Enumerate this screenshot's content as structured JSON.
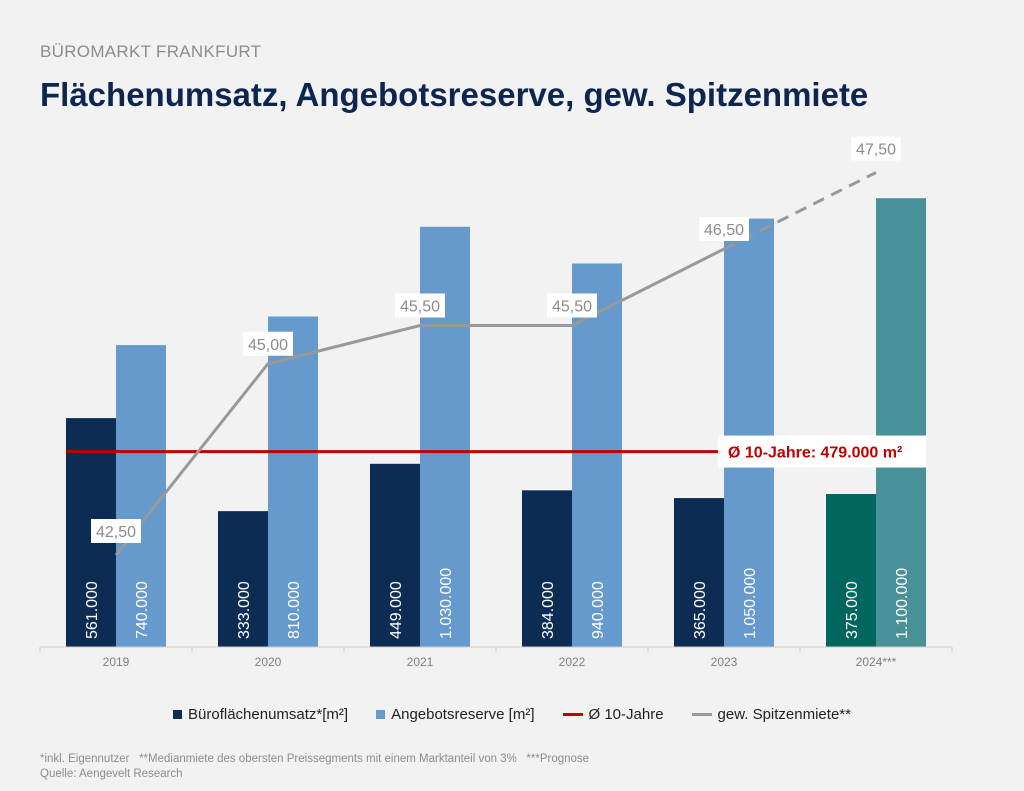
{
  "header": {
    "supertitle": "BÜROMARKT FRANKFURT",
    "title": "Flächenumsatz, Angebotsreserve, gew. Spitzenmiete"
  },
  "chart_data": {
    "type": "bar",
    "categories": [
      "2019",
      "2020",
      "2021",
      "2022",
      "2023",
      "2024***"
    ],
    "ylim": [
      0,
      1200000
    ],
    "grid": false,
    "legend_position": "bottom",
    "series": [
      {
        "name": "Büroflächenumsatz*[m²]",
        "values": [
          561000,
          333000,
          449000,
          384000,
          365000,
          375000
        ],
        "labels": [
          "561.000",
          "333.000",
          "449.000",
          "384.000",
          "365.000",
          "375.000"
        ],
        "color": "#0d2c54",
        "forecast_color": "#00665e"
      },
      {
        "name": "Angebotsreserve [m²]",
        "values": [
          740000,
          810000,
          1030000,
          940000,
          1050000,
          1100000
        ],
        "labels": [
          "740.000",
          "810.000",
          "1.030.000",
          "940.000",
          "1.050.000",
          "1.100.000"
        ],
        "color": "#6699cc",
        "forecast_color": "#4a9099"
      }
    ],
    "reference_line": {
      "name": "Ø 10-Jahre",
      "value": 479000,
      "label": "Ø 10-Jahre: 479.000 m²",
      "color": "#c00000"
    },
    "rent_line": {
      "name": "gew. Spitzenmiete**",
      "values": [
        42.5,
        45.0,
        45.5,
        45.5,
        46.5,
        47.5
      ],
      "labels": [
        "42,50",
        "45,00",
        "45,50",
        "45,50",
        "46,50",
        "47,50"
      ],
      "color": "#999999",
      "forecast_dashed": true,
      "secondary_ylim": [
        41.0,
        48.0
      ]
    }
  },
  "footnote": {
    "line1": "*inkl. Eigennutzer   **Medianmiete des obersten Preissegments mit einem Marktanteil von 3%   ***Prognose",
    "line2": "Quelle: Aengevelt Research"
  }
}
